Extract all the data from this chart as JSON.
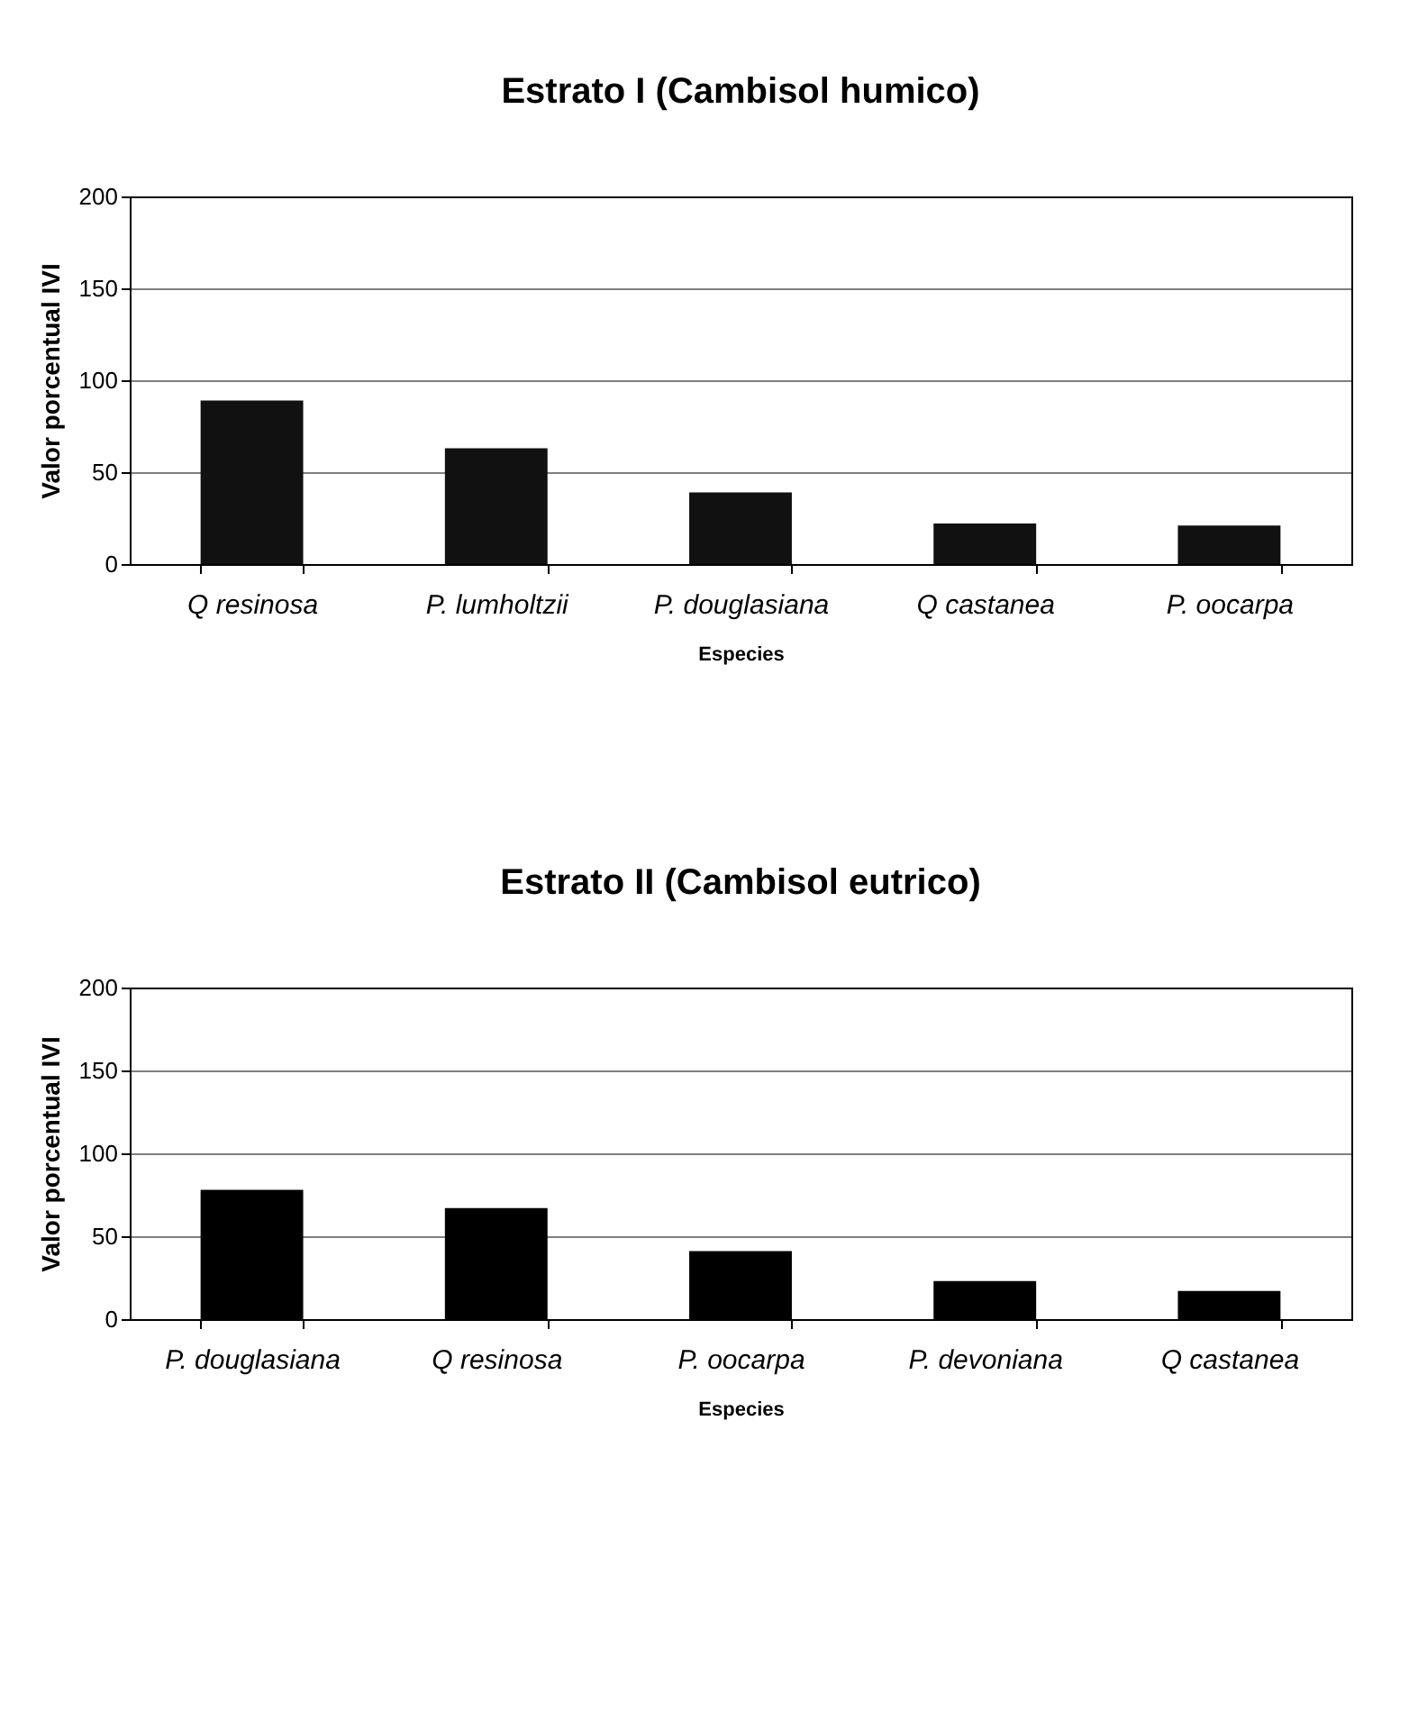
{
  "chart_data": [
    {
      "type": "bar",
      "title": "Estrato I (Cambisol humico)",
      "xlabel": "Especies",
      "ylabel": "Valor porcentual IVI",
      "categories": [
        "Q resinosa",
        "P. lumholtzii",
        "P. douglasiana",
        "Q castanea",
        "P. oocarpa"
      ],
      "values": [
        89,
        63,
        39,
        22,
        21
      ],
      "color": "#111111",
      "ylim": [
        0,
        200
      ],
      "yticks": [
        0,
        50,
        100,
        150,
        200
      ],
      "grid": "y"
    },
    {
      "type": "bar",
      "title": "Estrato II (Cambisol eutrico)",
      "xlabel": "Especies",
      "ylabel": "Valor porcentual IVI",
      "categories": [
        "P. douglasiana",
        "Q resinosa",
        "P. oocarpa",
        "P. devoniana",
        "Q castanea"
      ],
      "values": [
        78,
        67,
        41,
        23,
        17
      ],
      "color": "#000000",
      "ylim": [
        0,
        200
      ],
      "yticks": [
        0,
        50,
        100,
        150,
        200
      ],
      "grid": "y"
    }
  ]
}
